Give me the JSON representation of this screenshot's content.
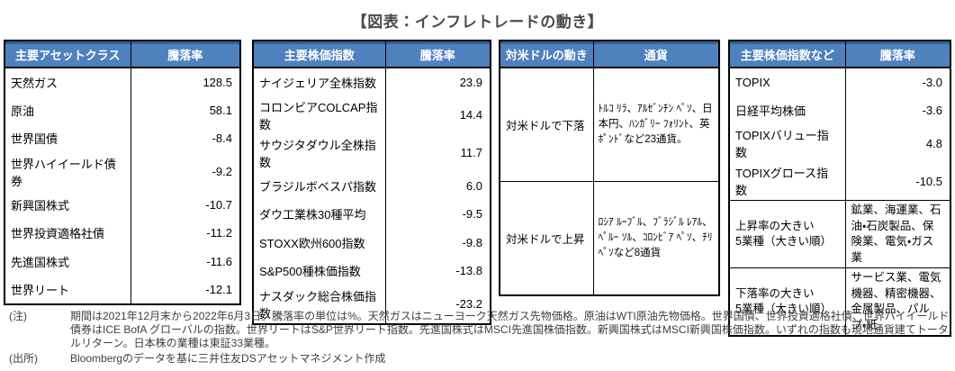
{
  "title": "【図表：インフレトレードの動き】",
  "colors": {
    "header_bg": "#4f81bd",
    "header_text": "#ffffff",
    "table_border": "#000000",
    "title_text": "#4a4a4a"
  },
  "tables": [
    {
      "name": "asset-class-table",
      "headers": [
        "主要アセットクラス",
        "騰落率"
      ],
      "rows": [
        [
          "天然ガス",
          "128.5"
        ],
        [
          "原油",
          "58.1"
        ],
        [
          "世界国債",
          "-8.4"
        ],
        [
          "世界ハイイールド債券",
          "-9.2"
        ],
        [
          "新興国株式",
          "-10.7"
        ],
        [
          "世界投資適格社債",
          "-11.2"
        ],
        [
          "先進国株式",
          "-11.6"
        ],
        [
          "世界リート",
          "-12.1"
        ]
      ]
    },
    {
      "name": "stock-index-table",
      "headers": [
        "主要株価指数",
        "騰落率"
      ],
      "rows": [
        [
          "ナイジェリア全株指数",
          "23.9"
        ],
        [
          "コロンビアCOLCAP指数",
          "14.4"
        ],
        [
          "サウジタダウル全株指数",
          "11.7"
        ],
        [
          "ブラジルボベスパ指数",
          "6.0"
        ],
        [
          "ダウ工業株30種平均",
          "-9.5"
        ],
        [
          "STOXX欧州600指数",
          "-9.8"
        ],
        [
          "S&P500種株価指数",
          "-13.8"
        ],
        [
          "ナスダック総合株価指数",
          "-23.2"
        ]
      ]
    },
    {
      "name": "currency-table",
      "headers": [
        "対米ドルの動き",
        "通貨"
      ],
      "rows": [
        [
          "対米ドルで下落",
          "ﾄﾙｺ ﾘﾗ、ｱﾙｾﾞﾝﾁﾝ ﾍﾟｿ、日本円、ﾊﾝｶﾞﾘｰ ﾌｫﾘﾝﾄ、英ﾎﾟﾝﾄﾞなど23通貨。"
        ],
        [
          "対米ドルで上昇",
          "ﾛｼｱ ﾙｰﾌﾞﾙ、ﾌﾞﾗｼﾞﾙ ﾚｱﾙ、ﾍﾟﾙｰ ｿﾙ、ｺﾛﾝﾋﾞｱ ﾍﾟｿ、ﾁﾘ ﾍﾟｿなど8通貨"
        ]
      ]
    },
    {
      "name": "japan-index-table",
      "headers": [
        "主要株価指数など",
        "騰落率"
      ],
      "rows": [
        [
          "TOPIX",
          "-3.0"
        ],
        [
          "日経平均株価",
          "-3.6"
        ],
        [
          "TOPIXバリュー指数",
          "4.8"
        ],
        [
          "TOPIXグロース指数",
          "-10.5"
        ],
        [
          "上昇率の大きい\n5業種（大きい順）",
          "鉱業、海運業、石油・石炭製品、保険業、電気・ガス業"
        ],
        [
          "下落率の大きい\n5業種（大きい順）",
          "サービス業、電気機器、精密機器、金属製品、パルプ・紙"
        ]
      ]
    }
  ],
  "chart_data": {
    "type": "table",
    "title": "【図表：インフレトレードの動き】",
    "series": [
      {
        "name": "主要アセットクラス騰落率(%)",
        "categories": [
          "天然ガス",
          "原油",
          "世界国債",
          "世界ハイイールド債券",
          "新興国株式",
          "世界投資適格社債",
          "先進国株式",
          "世界リート"
        ],
        "values": [
          128.5,
          58.1,
          -8.4,
          -9.2,
          -10.7,
          -11.2,
          -11.6,
          -12.1
        ]
      },
      {
        "name": "主要株価指数騰落率(%)",
        "categories": [
          "ナイジェリア全株指数",
          "コロンビアCOLCAP指数",
          "サウジタダウル全株指数",
          "ブラジルボベスパ指数",
          "ダウ工業株30種平均",
          "STOXX欧州600指数",
          "S&P500種株価指数",
          "ナスダック総合株価指数"
        ],
        "values": [
          23.9,
          14.4,
          11.7,
          6.0,
          -9.5,
          -9.8,
          -13.8,
          -23.2
        ]
      },
      {
        "name": "主要株価指数など騰落率(%)",
        "categories": [
          "TOPIX",
          "日経平均株価",
          "TOPIXバリュー指数",
          "TOPIXグロース指数"
        ],
        "values": [
          -3.0,
          -3.6,
          4.8,
          -10.5
        ]
      }
    ]
  },
  "notes": {
    "note_label": "(注)",
    "note_text": "期間は2021年12月末から2022年6月3日。騰落率の単位は%。天然ガスはニューヨーク天然ガス先物価格。原油はWTI原油先物価格。世界国債、世界投資適格社債、世界ハイイールド債券はICE BofA グローバルの指数。世界リートはS&P世界リート指数。先進国株式はMSCI先進国株価指数。新興国株式はMSCI新興国株価指数。いずれの指数も現地通貨建てトータルリターン。日本株の業種は東証33業種。",
    "source_label": "(出所)",
    "source_text": "Bloombergのデータを基に三井住友DSアセットマネジメント作成"
  }
}
